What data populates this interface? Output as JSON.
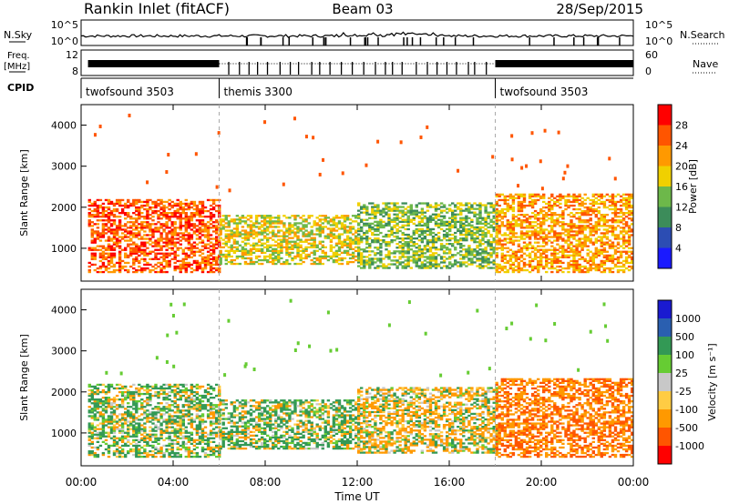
{
  "header": {
    "station": "Rankin Inlet (fitACF)",
    "beam": "Beam 03",
    "date": "28/Sep/2015"
  },
  "top_panels": {
    "nsky": {
      "label": "N.Sky",
      "tick_top": "10^5",
      "tick_bottom": "10^0",
      "right_label": "N.Search",
      "right_tick_top": "10^5",
      "right_tick_bottom": "10^0"
    },
    "freq": {
      "label_line1": "Freq.",
      "label_line2": "[MHz]",
      "tick_top": "12",
      "tick_bottom": "8",
      "right_label": "Nave",
      "right_tick_top": "60",
      "right_tick_bottom": "0"
    },
    "cpid": {
      "label": "CPID",
      "segments": [
        {
          "name": "twofsound 3503",
          "start_hour": 0,
          "end_hour": 6
        },
        {
          "name": "themis 3300",
          "start_hour": 6,
          "end_hour": 18
        },
        {
          "name": "twofsound 3503",
          "start_hour": 18,
          "end_hour": 24
        }
      ]
    }
  },
  "x_axis": {
    "label": "Time UT",
    "ticks": [
      "00:00",
      "04:00",
      "08:00",
      "12:00",
      "16:00",
      "20:00",
      "00:00"
    ]
  },
  "y_axis": {
    "label": "Slant Range [km]",
    "ticks": [
      "1000",
      "2000",
      "3000",
      "4000"
    ]
  },
  "colors": {
    "power": [
      "#1a1aff",
      "#2c4db3",
      "#3c8c5a",
      "#6db84a",
      "#f0d000",
      "#ff9900",
      "#ff5500",
      "#ff0000"
    ],
    "velocity": [
      "#ff0000",
      "#ff5500",
      "#ff9900",
      "#ffcc44",
      "#c8c8c8",
      "#66cc33",
      "#339955",
      "#2a5fb0",
      "#1a1ad0"
    ]
  },
  "power_colorbar": {
    "label": "Power [dB]",
    "ticks": [
      "4",
      "8",
      "12",
      "16",
      "20",
      "24",
      "28"
    ]
  },
  "velocity_colorbar": {
    "label": "Velocity [m s⁻¹]",
    "ticks": [
      "1000",
      "500",
      "100",
      "25",
      "-25",
      "-100",
      "-500",
      "-1000"
    ]
  },
  "chart_data": [
    {
      "type": "heatmap",
      "ylabel": "Slant Range [km]",
      "xlabel": "",
      "xlim": [
        0,
        24
      ],
      "ylim": [
        200,
        4500
      ],
      "colorbar": "Power [dB]",
      "colorbar_range": [
        0,
        32
      ],
      "regions": [
        {
          "t0": 0.3,
          "t1": 6.0,
          "r0": 400,
          "r1": 2200,
          "value": 26
        },
        {
          "t0": 6.0,
          "t1": 12.0,
          "r0": 600,
          "r1": 1800,
          "value": 18
        },
        {
          "t0": 12.0,
          "t1": 18.0,
          "r0": 500,
          "r1": 2100,
          "value": 14
        },
        {
          "t0": 18.0,
          "t1": 24.0,
          "r0": 400,
          "r1": 2300,
          "value": 22
        }
      ]
    },
    {
      "type": "heatmap",
      "ylabel": "Slant Range [km]",
      "xlabel": "Time UT",
      "xlim": [
        0,
        24
      ],
      "ylim": [
        200,
        4500
      ],
      "colorbar": "Velocity [m s⁻¹]",
      "colorbar_range": [
        -1000,
        1000
      ],
      "regions": [
        {
          "t0": 0.3,
          "t1": 6.0,
          "r0": 400,
          "r1": 2200,
          "value": 100
        },
        {
          "t0": 6.0,
          "t1": 12.0,
          "r0": 600,
          "r1": 1800,
          "value": 100
        },
        {
          "t0": 12.0,
          "t1": 18.0,
          "r0": 500,
          "r1": 2100,
          "value": -100
        },
        {
          "t0": 18.0,
          "t1": 24.0,
          "r0": 400,
          "r1": 2300,
          "value": -500
        }
      ]
    }
  ]
}
